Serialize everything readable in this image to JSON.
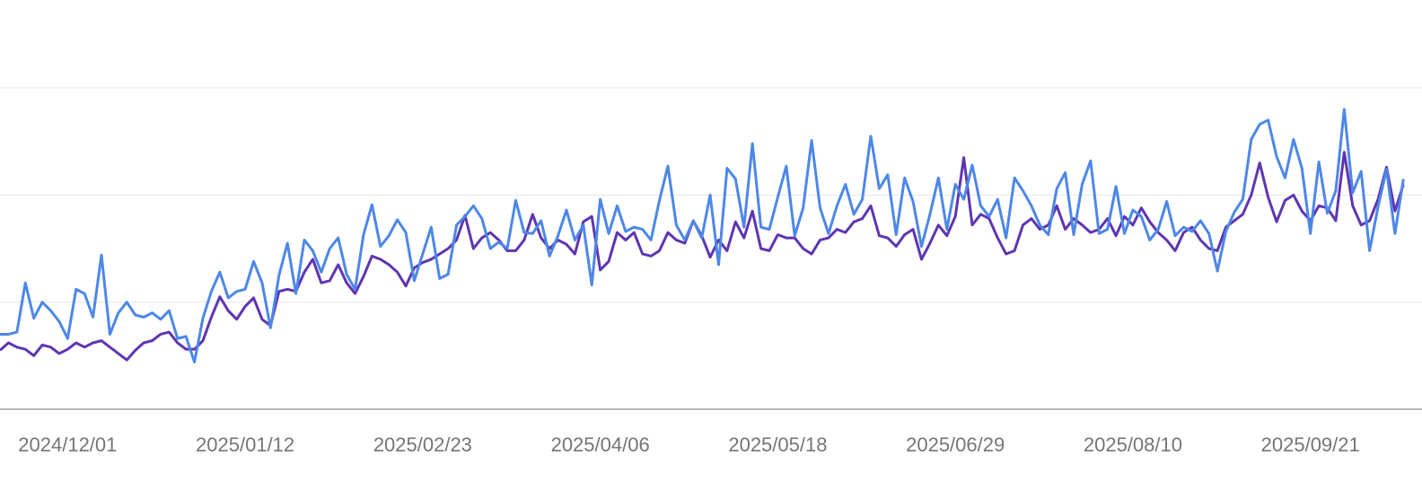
{
  "chart_data": {
    "type": "line",
    "x": [
      "2024/11/15",
      "2024/11/17",
      "2024/11/19",
      "2024/11/21",
      "2024/11/23",
      "2024/11/25",
      "2024/11/27",
      "2024/11/29",
      "2024/12/01",
      "2024/12/03",
      "2024/12/05",
      "2024/12/07",
      "2024/12/09",
      "2024/12/11",
      "2024/12/13",
      "2024/12/15",
      "2024/12/17",
      "2024/12/19",
      "2024/12/21",
      "2024/12/23",
      "2024/12/25",
      "2024/12/27",
      "2024/12/29",
      "2024/12/31",
      "2025/01/02",
      "2025/01/04",
      "2025/01/06",
      "2025/01/08",
      "2025/01/10",
      "2025/01/12",
      "2025/01/14",
      "2025/01/16",
      "2025/01/18",
      "2025/01/20",
      "2025/01/22",
      "2025/01/24",
      "2025/01/26",
      "2025/01/28",
      "2025/01/30",
      "2025/02/01",
      "2025/02/03",
      "2025/02/05",
      "2025/02/07",
      "2025/02/09",
      "2025/02/11",
      "2025/02/13",
      "2025/02/15",
      "2025/02/17",
      "2025/02/19",
      "2025/02/21",
      "2025/02/23",
      "2025/02/25",
      "2025/02/27",
      "2025/03/01",
      "2025/03/03",
      "2025/03/05",
      "2025/03/07",
      "2025/03/09",
      "2025/03/11",
      "2025/03/13",
      "2025/03/15",
      "2025/03/17",
      "2025/03/19",
      "2025/03/21",
      "2025/03/23",
      "2025/03/25",
      "2025/03/27",
      "2025/03/29",
      "2025/03/31",
      "2025/04/02",
      "2025/04/04",
      "2025/04/06",
      "2025/04/08",
      "2025/04/10",
      "2025/04/12",
      "2025/04/14",
      "2025/04/16",
      "2025/04/18",
      "2025/04/20",
      "2025/04/22",
      "2025/04/24",
      "2025/04/26",
      "2025/04/28",
      "2025/04/30",
      "2025/05/02",
      "2025/05/04",
      "2025/05/06",
      "2025/05/08",
      "2025/05/10",
      "2025/05/12",
      "2025/05/14",
      "2025/05/16",
      "2025/05/18",
      "2025/05/20",
      "2025/05/22",
      "2025/05/24",
      "2025/05/26",
      "2025/05/28",
      "2025/05/30",
      "2025/06/01",
      "2025/06/03",
      "2025/06/05",
      "2025/06/07",
      "2025/06/09",
      "2025/06/11",
      "2025/06/13",
      "2025/06/15",
      "2025/06/17",
      "2025/06/19",
      "2025/06/21",
      "2025/06/23",
      "2025/06/25",
      "2025/06/27",
      "2025/06/29",
      "2025/07/01",
      "2025/07/03",
      "2025/07/05",
      "2025/07/07",
      "2025/07/09",
      "2025/07/11",
      "2025/07/13",
      "2025/07/15",
      "2025/07/17",
      "2025/07/19",
      "2025/07/21",
      "2025/07/23",
      "2025/07/25",
      "2025/07/27",
      "2025/07/29",
      "2025/07/31",
      "2025/08/02",
      "2025/08/04",
      "2025/08/06",
      "2025/08/08",
      "2025/08/10",
      "2025/08/12",
      "2025/08/14",
      "2025/08/16",
      "2025/08/18",
      "2025/08/20",
      "2025/08/22",
      "2025/08/24",
      "2025/08/26",
      "2025/08/28",
      "2025/08/30",
      "2025/09/01",
      "2025/09/03",
      "2025/09/05",
      "2025/09/07",
      "2025/09/09",
      "2025/09/11",
      "2025/09/13",
      "2025/09/15",
      "2025/09/17",
      "2025/09/19",
      "2025/09/21",
      "2025/09/23",
      "2025/09/25",
      "2025/09/27",
      "2025/09/29",
      "2025/10/01",
      "2025/10/03",
      "2025/10/05",
      "2025/10/07",
      "2025/10/09",
      "2025/10/11",
      "2025/10/13"
    ],
    "series": [
      {
        "color": "#5e35b1",
        "values": [
          55,
          62,
          58,
          56,
          50,
          60,
          58,
          52,
          56,
          62,
          58,
          62,
          64,
          58,
          52,
          46,
          55,
          62,
          64,
          70,
          72,
          62,
          56,
          56,
          64,
          86,
          105,
          92,
          84,
          96,
          104,
          84,
          78,
          110,
          112,
          110,
          128,
          140,
          118,
          120,
          135,
          118,
          108,
          124,
          143,
          140,
          135,
          128,
          115,
          132,
          137,
          140,
          145,
          150,
          158,
          181,
          150,
          160,
          165,
          158,
          148,
          148,
          158,
          182,
          160,
          150,
          158,
          154,
          145,
          175,
          180,
          130,
          138,
          165,
          158,
          165,
          145,
          143,
          148,
          165,
          158,
          155,
          176,
          162,
          142,
          158,
          148,
          175,
          160,
          185,
          150,
          148,
          163,
          160,
          160,
          150,
          145,
          158,
          160,
          168,
          165,
          175,
          178,
          190,
          162,
          160,
          152,
          163,
          168,
          140,
          155,
          172,
          162,
          180,
          235,
          172,
          182,
          178,
          160,
          145,
          148,
          172,
          178,
          168,
          172,
          190,
          168,
          178,
          172,
          165,
          168,
          178,
          162,
          180,
          172,
          188,
          175,
          165,
          158,
          148,
          165,
          170,
          158,
          150,
          148,
          170,
          176,
          182,
          200,
          230,
          198,
          175,
          195,
          200,
          185,
          176,
          190,
          188,
          176,
          240,
          190,
          172,
          176,
          196,
          226,
          185,
          210
        ]
      },
      {
        "color": "#4d87e8",
        "values": [
          70,
          70,
          72,
          118,
          85,
          100,
          92,
          82,
          66,
          112,
          108,
          86,
          144,
          70,
          90,
          100,
          88,
          86,
          90,
          84,
          92,
          66,
          68,
          44,
          85,
          110,
          128,
          104,
          110,
          112,
          138,
          118,
          76,
          125,
          155,
          108,
          158,
          148,
          128,
          150,
          160,
          126,
          112,
          163,
          191,
          152,
          162,
          177,
          165,
          120,
          145,
          170,
          122,
          126,
          172,
          180,
          190,
          178,
          150,
          156,
          150,
          195,
          165,
          164,
          176,
          143,
          162,
          186,
          158,
          172,
          116,
          196,
          164,
          190,
          166,
          170,
          168,
          158,
          195,
          227,
          172,
          158,
          176,
          160,
          200,
          135,
          225,
          215,
          170,
          248,
          170,
          168,
          198,
          227,
          162,
          188,
          251,
          188,
          164,
          190,
          210,
          182,
          196,
          255,
          206,
          219,
          163,
          216,
          194,
          152,
          182,
          216,
          168,
          210,
          196,
          228,
          190,
          180,
          196,
          160,
          216,
          204,
          190,
          172,
          163,
          206,
          221,
          163,
          210,
          232,
          164,
          168,
          208,
          164,
          186,
          180,
          158,
          168,
          194,
          162,
          170,
          166,
          176,
          164,
          129,
          166,
          184,
          196,
          252,
          266,
          270,
          236,
          216,
          252,
          225,
          164,
          231,
          183,
          204,
          280,
          202,
          222,
          148,
          189,
          224,
          164,
          215
        ]
      }
    ],
    "xlim": [
      "2024/11/15",
      "2025/10/14"
    ],
    "xticks": [
      "2024/12/01",
      "2025/01/12",
      "2025/02/23",
      "2025/04/06",
      "2025/05/18",
      "2025/06/29",
      "2025/08/10",
      "2025/09/21"
    ],
    "ylim": [
      0,
      300
    ],
    "yticks": [
      0,
      100,
      200,
      300
    ],
    "grid": true
  }
}
